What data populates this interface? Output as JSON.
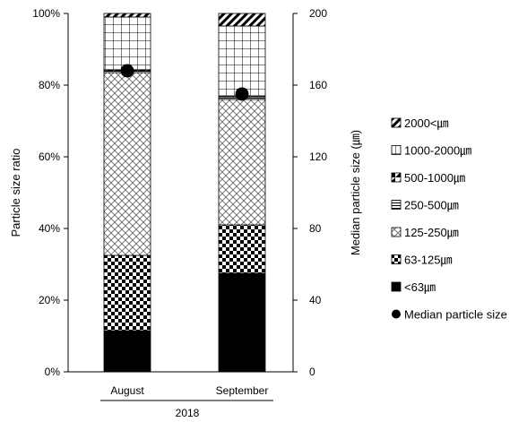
{
  "chart_data": {
    "type": "bar",
    "stacked": true,
    "group_label": "2018",
    "categories": [
      "August",
      "September"
    ],
    "ylabel": "Particle size ratio",
    "y2label": "Median particle size (㎛)",
    "ylim": [
      0,
      100
    ],
    "y2lim": [
      0,
      200
    ],
    "yticks": [
      "0%",
      "20%",
      "40%",
      "60%",
      "80%",
      "100%"
    ],
    "y2ticks": [
      "0",
      "40",
      "80",
      "120",
      "160",
      "200"
    ],
    "series": [
      {
        "name": "<63㎛",
        "pattern": "solid",
        "values": [
          11.5,
          27.5
        ]
      },
      {
        "name": "63-125㎛",
        "pattern": "checker",
        "values": [
          21.0,
          13.5
        ]
      },
      {
        "name": "125-250㎛",
        "pattern": "crosshatch",
        "values": [
          51.0,
          35.0
        ]
      },
      {
        "name": "250-500㎛",
        "pattern": "hlines",
        "values": [
          0.5,
          0.5
        ]
      },
      {
        "name": "500-1000㎛",
        "pattern": "diag-half",
        "values": [
          0.3,
          0.5
        ]
      },
      {
        "name": "1000-2000㎛",
        "pattern": "grid",
        "values": [
          14.7,
          19.5
        ]
      },
      {
        "name": "2000<㎛",
        "pattern": "diagonal",
        "values": [
          1.0,
          3.5
        ]
      }
    ],
    "median": {
      "name": "Median particle size",
      "values": [
        168,
        155
      ]
    },
    "legend_position": "right"
  }
}
